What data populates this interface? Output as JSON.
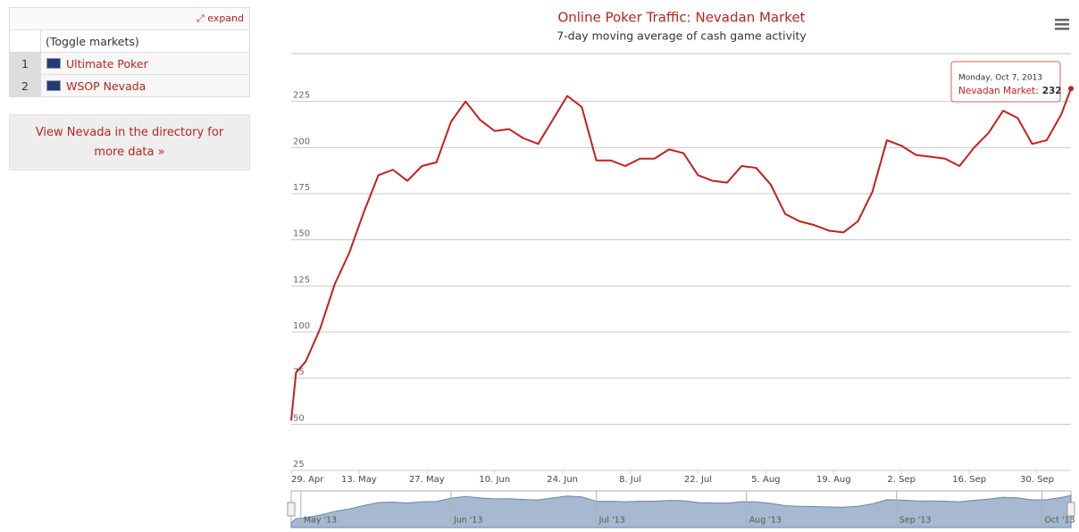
{
  "sidebar": {
    "expand": "expand",
    "toggle": "(Toggle markets)",
    "rows": [
      [
        "1",
        "Ultimate Poker"
      ],
      [
        "2",
        "WSOP Nevada"
      ]
    ],
    "link": "View Nevada in the directory for more data »"
  },
  "chart_data": {
    "type": "line",
    "title": "Online Poker Traffic: Nevadan Market",
    "subtitle": "7-day moving average of cash game activity",
    "x": [
      "2013-04-29",
      "2013-04-30",
      "2013-05-02",
      "2013-05-05",
      "2013-05-08",
      "2013-05-11",
      "2013-05-14",
      "2013-05-17",
      "2013-05-20",
      "2013-05-23",
      "2013-05-26",
      "2013-05-29",
      "2013-06-01",
      "2013-06-04",
      "2013-06-07",
      "2013-06-10",
      "2013-06-13",
      "2013-06-16",
      "2013-06-19",
      "2013-06-22",
      "2013-06-25",
      "2013-06-28",
      "2013-07-01",
      "2013-07-04",
      "2013-07-07",
      "2013-07-10",
      "2013-07-13",
      "2013-07-16",
      "2013-07-19",
      "2013-07-22",
      "2013-07-25",
      "2013-07-28",
      "2013-07-31",
      "2013-08-03",
      "2013-08-06",
      "2013-08-09",
      "2013-08-12",
      "2013-08-15",
      "2013-08-18",
      "2013-08-21",
      "2013-08-24",
      "2013-08-27",
      "2013-08-30",
      "2013-09-02",
      "2013-09-05",
      "2013-09-08",
      "2013-09-11",
      "2013-09-14",
      "2013-09-17",
      "2013-09-20",
      "2013-09-23",
      "2013-09-26",
      "2013-09-29",
      "2013-10-02",
      "2013-10-05",
      "2013-10-07"
    ],
    "series": [
      {
        "name": "Nevadan Market",
        "color": "#c4201b",
        "values": [
          52,
          78,
          84,
          102,
          126,
          143,
          165,
          185,
          188,
          182,
          190,
          192,
          214,
          225,
          215,
          209,
          210,
          205,
          202,
          215,
          228,
          222,
          193,
          193,
          190,
          194,
          194,
          199,
          197,
          185,
          182,
          181,
          190,
          189,
          180,
          164,
          160,
          158,
          155,
          154,
          160,
          176,
          204,
          201,
          196,
          195,
          194,
          190,
          200,
          208,
          220,
          216,
          202,
          204,
          218,
          232
        ]
      }
    ],
    "xlim": [
      "2013-04-29",
      "2013-10-07"
    ],
    "xticks": [
      {
        "value": "2013-04-29",
        "label": "29. Apr"
      },
      {
        "value": "2013-05-13",
        "label": "13. May"
      },
      {
        "value": "2013-05-27",
        "label": "27. May"
      },
      {
        "value": "2013-06-10",
        "label": "10. Jun"
      },
      {
        "value": "2013-06-24",
        "label": "24. Jun"
      },
      {
        "value": "2013-07-08",
        "label": "8. Jul"
      },
      {
        "value": "2013-07-22",
        "label": "22. Jul"
      },
      {
        "value": "2013-08-05",
        "label": "5. Aug"
      },
      {
        "value": "2013-08-19",
        "label": "19. Aug"
      },
      {
        "value": "2013-09-02",
        "label": "2. Sep"
      },
      {
        "value": "2013-09-16",
        "label": "16. Sep"
      },
      {
        "value": "2013-09-30",
        "label": "30. Sep"
      }
    ],
    "ylim": [
      25,
      250
    ],
    "yticks": [
      25,
      50,
      75,
      100,
      125,
      150,
      175,
      200,
      225
    ],
    "grid": true,
    "navigator_ticks": [
      {
        "value": "2013-05-01",
        "label": "May '13"
      },
      {
        "value": "2013-06-01",
        "label": "Jun '13"
      },
      {
        "value": "2013-07-01",
        "label": "Jul '13"
      },
      {
        "value": "2013-08-01",
        "label": "Aug '13"
      },
      {
        "value": "2013-09-01",
        "label": "Sep '13"
      },
      {
        "value": "2013-10-01",
        "label": "Oct '13"
      }
    ],
    "tooltip": {
      "header": "Monday, Oct 7, 2013",
      "label": "Nevadan Market:"
    }
  }
}
